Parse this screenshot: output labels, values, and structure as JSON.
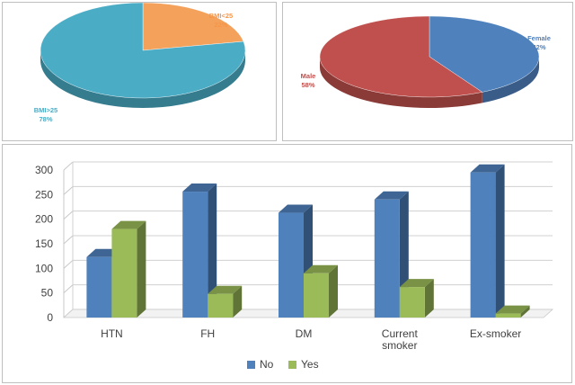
{
  "chart_data": [
    {
      "type": "pie",
      "slices": [
        {
          "label": "BMI<25",
          "value": 22,
          "pct_label": "22%",
          "color": "#f4a15c"
        },
        {
          "label": "BMI>25",
          "value": 78,
          "pct_label": "78%",
          "color": "#4bacc6"
        }
      ]
    },
    {
      "type": "pie",
      "slices": [
        {
          "label": "Female",
          "value": 42,
          "pct_label": "42%",
          "color": "#4f81bd"
        },
        {
          "label": "Male",
          "value": 58,
          "pct_label": "58%",
          "color": "#c0504d"
        }
      ]
    },
    {
      "type": "bar",
      "categories": [
        "HTN",
        "FH",
        "DM",
        "Current smoker",
        "Ex-smoker"
      ],
      "category_lines": [
        [
          "HTN"
        ],
        [
          "FH"
        ],
        [
          "DM"
        ],
        [
          "Current",
          "smoker"
        ],
        [
          "Ex-smoker"
        ]
      ],
      "series": [
        {
          "name": "No",
          "values": [
            123,
            256,
            213,
            240,
            295
          ],
          "color": "#4f81bd"
        },
        {
          "name": "Yes",
          "values": [
            180,
            48,
            90,
            62,
            8
          ],
          "color": "#9bbb59"
        }
      ],
      "ylim": [
        0,
        300
      ],
      "yticks": [
        0,
        50,
        100,
        150,
        200,
        250,
        300
      ],
      "grid": true,
      "legend_position": "bottom"
    }
  ]
}
